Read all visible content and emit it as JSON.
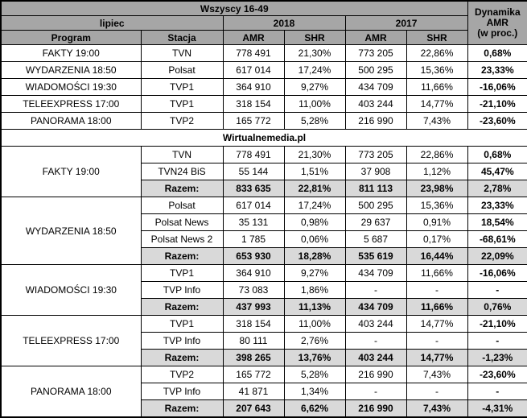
{
  "chart_data": {
    "type": "table",
    "audience": "Wszyscy 16-49",
    "month": "lipiec",
    "years": [
      "2018",
      "2017"
    ],
    "columns": {
      "program": "Program",
      "station": "Stacja",
      "amr": "AMR",
      "shr": "SHR"
    },
    "dynamics_header": [
      "Dynamika",
      "AMR",
      "(w proc.)"
    ],
    "summary": [
      {
        "program": "FAKTY 19:00",
        "station": "TVN",
        "values": [
          "778 491",
          "21,30%",
          "773 205",
          "22,86%",
          "0,68%"
        ]
      },
      {
        "program": "WYDARZENIA 18:50",
        "station": "Polsat",
        "values": [
          "617 014",
          "17,24%",
          "500 295",
          "15,36%",
          "23,33%"
        ]
      },
      {
        "program": "WIADOMOŚCI 19:30",
        "station": "TVP1",
        "values": [
          "364 910",
          "9,27%",
          "434 709",
          "11,66%",
          "-16,06%"
        ]
      },
      {
        "program": "TELEEXPRESS 17:00",
        "station": "TVP1",
        "values": [
          "318 154",
          "11,00%",
          "403 244",
          "14,77%",
          "-21,10%"
        ]
      },
      {
        "program": "PANORAMA 18:00",
        "station": "TVP2",
        "values": [
          "165 772",
          "5,28%",
          "216 990",
          "7,43%",
          "-23,60%"
        ]
      }
    ],
    "source": "Wirtualnemedia.pl",
    "groups": [
      {
        "program": "FAKTY 19:00",
        "rows": [
          {
            "station": "TVN",
            "total": false,
            "values": [
              "778 491",
              "21,30%",
              "773 205",
              "22,86%",
              "0,68%"
            ]
          },
          {
            "station": "TVN24 BiS",
            "total": false,
            "values": [
              "55 144",
              "1,51%",
              "37 908",
              "1,12%",
              "45,47%"
            ]
          },
          {
            "station": "Razem:",
            "total": true,
            "values": [
              "833 635",
              "22,81%",
              "811 113",
              "23,98%",
              "2,78%"
            ]
          }
        ]
      },
      {
        "program": "WYDARZENIA 18:50",
        "rows": [
          {
            "station": "Polsat",
            "total": false,
            "values": [
              "617 014",
              "17,24%",
              "500 295",
              "15,36%",
              "23,33%"
            ]
          },
          {
            "station": "Polsat News",
            "total": false,
            "values": [
              "35 131",
              "0,98%",
              "29 637",
              "0,91%",
              "18,54%"
            ]
          },
          {
            "station": "Polsat News 2",
            "total": false,
            "values": [
              "1 785",
              "0,06%",
              "5 687",
              "0,17%",
              "-68,61%"
            ]
          },
          {
            "station": "Razem:",
            "total": true,
            "values": [
              "653 930",
              "18,28%",
              "535 619",
              "16,44%",
              "22,09%"
            ]
          }
        ]
      },
      {
        "program": "WIADOMOŚCI 19:30",
        "rows": [
          {
            "station": "TVP1",
            "total": false,
            "values": [
              "364 910",
              "9,27%",
              "434 709",
              "11,66%",
              "-16,06%"
            ]
          },
          {
            "station": "TVP Info",
            "total": false,
            "values": [
              "73 083",
              "1,86%",
              "-",
              "-",
              "-"
            ]
          },
          {
            "station": "Razem:",
            "total": true,
            "values": [
              "437 993",
              "11,13%",
              "434 709",
              "11,66%",
              "0,76%"
            ]
          }
        ]
      },
      {
        "program": "TELEEXPRESS 17:00",
        "rows": [
          {
            "station": "TVP1",
            "total": false,
            "values": [
              "318 154",
              "11,00%",
              "403 244",
              "14,77%",
              "-21,10%"
            ]
          },
          {
            "station": "TVP Info",
            "total": false,
            "values": [
              "80 111",
              "2,76%",
              "-",
              "-",
              "-"
            ]
          },
          {
            "station": "Razem:",
            "total": true,
            "values": [
              "398 265",
              "13,76%",
              "403 244",
              "14,77%",
              "-1,23%"
            ]
          }
        ]
      },
      {
        "program": "PANORAMA 18:00",
        "rows": [
          {
            "station": "TVP2",
            "total": false,
            "values": [
              "165 772",
              "5,28%",
              "216 990",
              "7,43%",
              "-23,60%"
            ]
          },
          {
            "station": "TVP Info",
            "total": false,
            "values": [
              "41 871",
              "1,34%",
              "-",
              "-",
              "-"
            ]
          },
          {
            "station": "Razem:",
            "total": true,
            "values": [
              "207 643",
              "6,62%",
              "216 990",
              "7,43%",
              "-4,31%"
            ]
          }
        ]
      }
    ],
    "colors": {
      "header_bg": "#a6a6a6",
      "total_bg": "#d9d9d9",
      "border": "#000000"
    }
  }
}
